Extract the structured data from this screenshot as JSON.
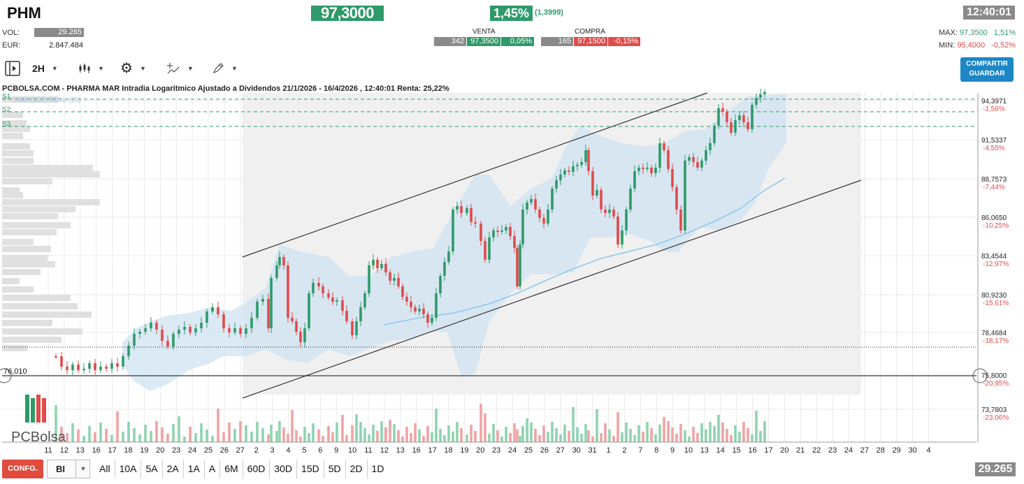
{
  "header": {
    "ticker": "PHM",
    "last_price": "97,3000",
    "pct_change": "1,45%",
    "abs_change": "(1,3999)",
    "time": "12:40:01",
    "vol_label": "VOL:",
    "vol_value": "29.265",
    "eur_label": "EUR:",
    "eur_value": "2.847.484",
    "max_label": "MAX:",
    "max_value": "97,3500",
    "max_pct": "1,51%",
    "min_label": "MIN:",
    "min_value": "95,4000",
    "min_pct": "-0,52%"
  },
  "orderbook": {
    "venta_title": "VENTA",
    "venta_qty": "342",
    "venta_price": "97,3500",
    "venta_pct": "0,05%",
    "compra_title": "COMPRA",
    "compra_qty": "165",
    "compra_price": "97,1500",
    "compra_pct": "-0,15%"
  },
  "toolbar": {
    "interval": "2H",
    "share_line1": "COMPARTIR",
    "share_line2": "GUARDAR"
  },
  "chart": {
    "title": "PCBOLSA.COM - PHARMA MAR Intradia Logaritmico Ajustado a Dividendos 21/1/2026 - 16/4/2026 , 12:40:01 Renta: 25,22%",
    "legend": "SMA (100)  BOLL (20)",
    "supports": [
      "S1",
      "S2",
      "S3"
    ],
    "level_left_label": "76,010",
    "y_ticks": [
      {
        "price": "94,3971",
        "pct": "-1,56%"
      },
      {
        "price": "91,5337",
        "pct": "-4,55%"
      },
      {
        "price": "88,7573",
        "pct": "-7,44%"
      },
      {
        "price": "86,0650",
        "pct": "-10,25%"
      },
      {
        "price": "83,4544",
        "pct": "-12,97%"
      },
      {
        "price": "80,9230",
        "pct": "-15,61%"
      },
      {
        "price": "78,4684",
        "pct": "-18,17%"
      },
      {
        "price": "75,8000",
        "pct": "-20,95%"
      },
      {
        "price": "73,7803",
        "pct": "-23,06%"
      }
    ],
    "x_ticks": [
      "11",
      "12",
      "13",
      "16",
      "17",
      "18",
      "19",
      "20",
      "23",
      "24",
      "25",
      "26",
      "27",
      "2",
      "3",
      "4",
      "5",
      "6",
      "9",
      "10",
      "11",
      "12",
      "13",
      "16",
      "17",
      "18",
      "19",
      "20",
      "23",
      "24",
      "25",
      "26",
      "27",
      "30",
      "31",
      "1",
      "2",
      "7",
      "8",
      "9",
      "10",
      "13",
      "14",
      "15",
      "16",
      "17",
      "20",
      "21",
      "22",
      "23",
      "24",
      "27",
      "28",
      "29",
      "30",
      "4"
    ],
    "logo_text": "PCBolsa",
    "colors": {
      "up": "#2e9a6a",
      "down": "#e04b4b",
      "band": "#cfe3f1",
      "sma": "#8ec8ee"
    }
  },
  "bottom": {
    "config_label": "CONFG.",
    "chart_type": "BI",
    "periods": [
      "All",
      "10A",
      "5A",
      "2A",
      "1A",
      "A",
      "6M",
      "60D",
      "30D",
      "15D",
      "5D",
      "2D",
      "1D"
    ],
    "volume": "29.265"
  }
}
